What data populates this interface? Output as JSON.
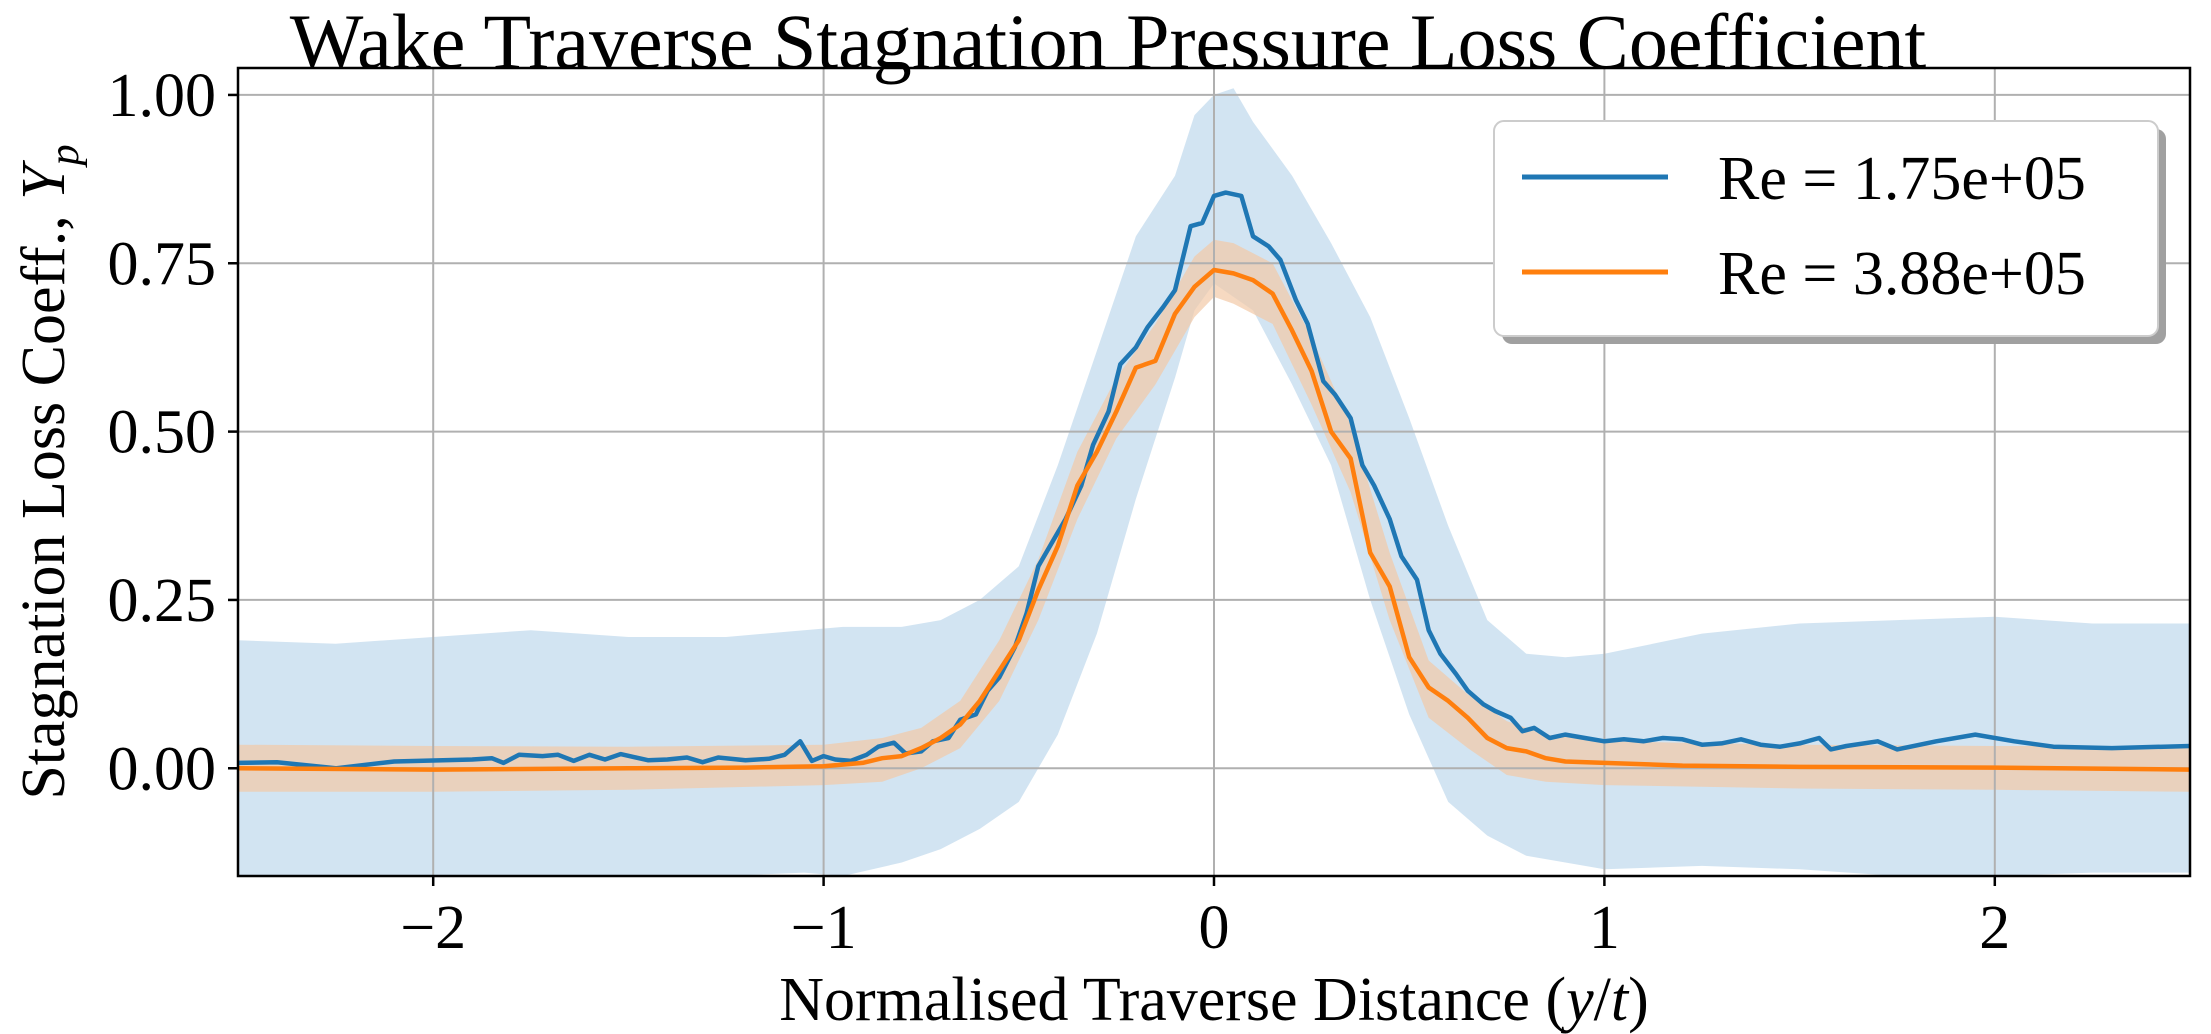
{
  "chart_data": {
    "type": "line",
    "title": "Wake Traverse Stagnation Pressure Loss Coefficient",
    "xlabel_parts": [
      "Normalised Traverse Distance (",
      "y",
      "/",
      "t",
      ")"
    ],
    "ylabel_parts": [
      "Stagnation Loss Coeff., ",
      "Y",
      "p"
    ],
    "xlim": [
      -2.5,
      2.5
    ],
    "ylim": [
      -0.16,
      1.04
    ],
    "grid": true,
    "legend_position": "top-right",
    "x_ticks": [
      -2,
      -1,
      0,
      1,
      2
    ],
    "x_tick_labels": [
      "−2",
      "−1",
      "0",
      "1",
      "2"
    ],
    "y_ticks": [
      0.0,
      0.25,
      0.5,
      0.75,
      1.0
    ],
    "y_tick_labels": [
      "0.00",
      "0.25",
      "0.50",
      "0.75",
      "1.00"
    ],
    "series": [
      {
        "name": "Re = 1.75e+05",
        "color": "#1f77b4",
        "band_color": "#a6c9e6",
        "points": [
          [
            -2.5,
            0.008
          ],
          [
            -2.4,
            0.009
          ],
          [
            -2.25,
            0.0
          ],
          [
            -2.1,
            0.01
          ],
          [
            -1.9,
            0.013
          ],
          [
            -1.85,
            0.015
          ],
          [
            -1.82,
            0.008
          ],
          [
            -1.78,
            0.02
          ],
          [
            -1.72,
            0.018
          ],
          [
            -1.68,
            0.02
          ],
          [
            -1.64,
            0.011
          ],
          [
            -1.6,
            0.02
          ],
          [
            -1.56,
            0.013
          ],
          [
            -1.52,
            0.021
          ],
          [
            -1.45,
            0.012
          ],
          [
            -1.4,
            0.013
          ],
          [
            -1.35,
            0.016
          ],
          [
            -1.31,
            0.009
          ],
          [
            -1.27,
            0.016
          ],
          [
            -1.2,
            0.012
          ],
          [
            -1.14,
            0.014
          ],
          [
            -1.1,
            0.02
          ],
          [
            -1.06,
            0.04
          ],
          [
            -1.03,
            0.011
          ],
          [
            -1.0,
            0.018
          ],
          [
            -0.97,
            0.013
          ],
          [
            -0.93,
            0.011
          ],
          [
            -0.89,
            0.02
          ],
          [
            -0.86,
            0.032
          ],
          [
            -0.82,
            0.038
          ],
          [
            -0.79,
            0.022
          ],
          [
            -0.75,
            0.025
          ],
          [
            -0.72,
            0.04
          ],
          [
            -0.68,
            0.045
          ],
          [
            -0.65,
            0.072
          ],
          [
            -0.61,
            0.08
          ],
          [
            -0.58,
            0.115
          ],
          [
            -0.55,
            0.135
          ],
          [
            -0.51,
            0.18
          ],
          [
            -0.48,
            0.23
          ],
          [
            -0.45,
            0.3
          ],
          [
            -0.41,
            0.34
          ],
          [
            -0.38,
            0.37
          ],
          [
            -0.34,
            0.42
          ],
          [
            -0.31,
            0.48
          ],
          [
            -0.27,
            0.53
          ],
          [
            -0.24,
            0.6
          ],
          [
            -0.2,
            0.625
          ],
          [
            -0.17,
            0.655
          ],
          [
            -0.13,
            0.685
          ],
          [
            -0.1,
            0.71
          ],
          [
            -0.06,
            0.805
          ],
          [
            -0.03,
            0.81
          ],
          [
            0.0,
            0.85
          ],
          [
            0.03,
            0.855
          ],
          [
            0.07,
            0.85
          ],
          [
            0.1,
            0.79
          ],
          [
            0.14,
            0.775
          ],
          [
            0.17,
            0.755
          ],
          [
            0.21,
            0.695
          ],
          [
            0.24,
            0.66
          ],
          [
            0.28,
            0.575
          ],
          [
            0.31,
            0.555
          ],
          [
            0.35,
            0.52
          ],
          [
            0.38,
            0.45
          ],
          [
            0.41,
            0.42
          ],
          [
            0.45,
            0.37
          ],
          [
            0.48,
            0.315
          ],
          [
            0.52,
            0.28
          ],
          [
            0.55,
            0.205
          ],
          [
            0.58,
            0.17
          ],
          [
            0.62,
            0.14
          ],
          [
            0.65,
            0.115
          ],
          [
            0.69,
            0.095
          ],
          [
            0.72,
            0.085
          ],
          [
            0.76,
            0.075
          ],
          [
            0.79,
            0.055
          ],
          [
            0.82,
            0.06
          ],
          [
            0.86,
            0.045
          ],
          [
            0.9,
            0.05
          ],
          [
            0.95,
            0.045
          ],
          [
            1.0,
            0.04
          ],
          [
            1.05,
            0.043
          ],
          [
            1.1,
            0.04
          ],
          [
            1.15,
            0.045
          ],
          [
            1.2,
            0.043
          ],
          [
            1.25,
            0.035
          ],
          [
            1.3,
            0.037
          ],
          [
            1.35,
            0.043
          ],
          [
            1.4,
            0.035
          ],
          [
            1.45,
            0.032
          ],
          [
            1.5,
            0.037
          ],
          [
            1.55,
            0.045
          ],
          [
            1.58,
            0.028
          ],
          [
            1.62,
            0.033
          ],
          [
            1.7,
            0.04
          ],
          [
            1.75,
            0.028
          ],
          [
            1.85,
            0.04
          ],
          [
            1.95,
            0.05
          ],
          [
            2.05,
            0.04
          ],
          [
            2.15,
            0.032
          ],
          [
            2.3,
            0.03
          ],
          [
            2.5,
            0.033
          ]
        ],
        "band": [
          [
            -2.5,
            -0.17,
            0.19
          ],
          [
            -2.25,
            -0.175,
            0.185
          ],
          [
            -2.0,
            -0.17,
            0.195
          ],
          [
            -1.75,
            -0.165,
            0.205
          ],
          [
            -1.5,
            -0.165,
            0.195
          ],
          [
            -1.25,
            -0.16,
            0.195
          ],
          [
            -1.05,
            -0.155,
            0.205
          ],
          [
            -0.95,
            -0.16,
            0.21
          ],
          [
            -0.8,
            -0.14,
            0.21
          ],
          [
            -0.7,
            -0.12,
            0.22
          ],
          [
            -0.6,
            -0.09,
            0.25
          ],
          [
            -0.5,
            -0.05,
            0.3
          ],
          [
            -0.4,
            0.05,
            0.45
          ],
          [
            -0.3,
            0.2,
            0.62
          ],
          [
            -0.2,
            0.4,
            0.79
          ],
          [
            -0.1,
            0.58,
            0.88
          ],
          [
            -0.05,
            0.68,
            0.97
          ],
          [
            0.0,
            0.72,
            1.0
          ],
          [
            0.05,
            0.7,
            1.01
          ],
          [
            0.1,
            0.68,
            0.96
          ],
          [
            0.2,
            0.57,
            0.88
          ],
          [
            0.3,
            0.45,
            0.78
          ],
          [
            0.4,
            0.25,
            0.67
          ],
          [
            0.5,
            0.08,
            0.52
          ],
          [
            0.6,
            -0.05,
            0.36
          ],
          [
            0.7,
            -0.1,
            0.22
          ],
          [
            0.8,
            -0.13,
            0.17
          ],
          [
            0.9,
            -0.14,
            0.165
          ],
          [
            1.0,
            -0.15,
            0.17
          ],
          [
            1.25,
            -0.145,
            0.2
          ],
          [
            1.5,
            -0.15,
            0.215
          ],
          [
            1.75,
            -0.16,
            0.22
          ],
          [
            2.0,
            -0.16,
            0.225
          ],
          [
            2.25,
            -0.155,
            0.215
          ],
          [
            2.5,
            -0.155,
            0.215
          ]
        ]
      },
      {
        "name": "Re = 3.88e+05",
        "color": "#ff7f0e",
        "band_color": "#f2c9a6",
        "points": [
          [
            -2.5,
            0.0
          ],
          [
            -2.0,
            -0.002
          ],
          [
            -1.5,
            0.0
          ],
          [
            -1.2,
            0.001
          ],
          [
            -1.0,
            0.003
          ],
          [
            -0.9,
            0.008
          ],
          [
            -0.85,
            0.015
          ],
          [
            -0.8,
            0.018
          ],
          [
            -0.75,
            0.03
          ],
          [
            -0.7,
            0.045
          ],
          [
            -0.65,
            0.065
          ],
          [
            -0.6,
            0.1
          ],
          [
            -0.55,
            0.145
          ],
          [
            -0.5,
            0.19
          ],
          [
            -0.45,
            0.265
          ],
          [
            -0.4,
            0.33
          ],
          [
            -0.35,
            0.42
          ],
          [
            -0.3,
            0.47
          ],
          [
            -0.25,
            0.53
          ],
          [
            -0.2,
            0.595
          ],
          [
            -0.15,
            0.605
          ],
          [
            -0.1,
            0.675
          ],
          [
            -0.05,
            0.715
          ],
          [
            0.0,
            0.74
          ],
          [
            0.05,
            0.735
          ],
          [
            0.1,
            0.725
          ],
          [
            0.15,
            0.705
          ],
          [
            0.2,
            0.65
          ],
          [
            0.25,
            0.59
          ],
          [
            0.3,
            0.5
          ],
          [
            0.35,
            0.46
          ],
          [
            0.4,
            0.32
          ],
          [
            0.45,
            0.27
          ],
          [
            0.5,
            0.165
          ],
          [
            0.55,
            0.12
          ],
          [
            0.6,
            0.1
          ],
          [
            0.65,
            0.075
          ],
          [
            0.7,
            0.045
          ],
          [
            0.75,
            0.03
          ],
          [
            0.8,
            0.025
          ],
          [
            0.85,
            0.015
          ],
          [
            0.9,
            0.01
          ],
          [
            1.0,
            0.008
          ],
          [
            1.2,
            0.004
          ],
          [
            1.5,
            0.002
          ],
          [
            2.0,
            0.001
          ],
          [
            2.5,
            -0.002
          ]
        ],
        "band": [
          [
            -2.5,
            -0.035,
            0.035
          ],
          [
            -2.0,
            -0.035,
            0.033
          ],
          [
            -1.5,
            -0.032,
            0.032
          ],
          [
            -1.0,
            -0.025,
            0.035
          ],
          [
            -0.85,
            -0.02,
            0.045
          ],
          [
            -0.75,
            0.0,
            0.06
          ],
          [
            -0.65,
            0.03,
            0.1
          ],
          [
            -0.55,
            0.1,
            0.19
          ],
          [
            -0.45,
            0.22,
            0.31
          ],
          [
            -0.35,
            0.37,
            0.47
          ],
          [
            -0.25,
            0.49,
            0.58
          ],
          [
            -0.15,
            0.57,
            0.66
          ],
          [
            -0.05,
            0.67,
            0.76
          ],
          [
            0.0,
            0.7,
            0.785
          ],
          [
            0.05,
            0.69,
            0.78
          ],
          [
            0.15,
            0.66,
            0.75
          ],
          [
            0.25,
            0.54,
            0.64
          ],
          [
            0.35,
            0.41,
            0.51
          ],
          [
            0.45,
            0.22,
            0.32
          ],
          [
            0.55,
            0.075,
            0.16
          ],
          [
            0.65,
            0.03,
            0.11
          ],
          [
            0.75,
            -0.01,
            0.07
          ],
          [
            0.85,
            -0.02,
            0.05
          ],
          [
            1.0,
            -0.025,
            0.04
          ],
          [
            1.5,
            -0.03,
            0.035
          ],
          [
            2.0,
            -0.032,
            0.033
          ],
          [
            2.5,
            -0.035,
            0.033
          ]
        ]
      }
    ]
  }
}
